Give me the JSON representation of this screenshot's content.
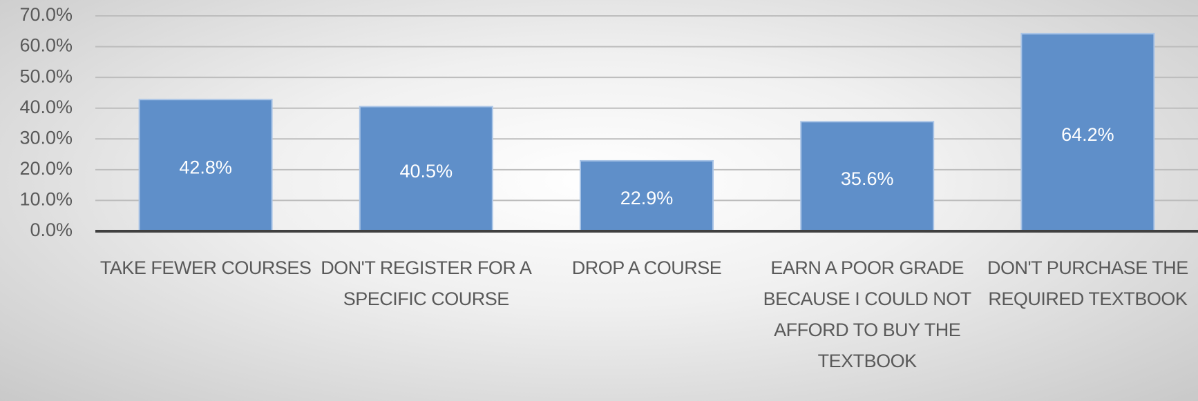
{
  "chart_data": {
    "type": "bar",
    "categories": [
      "TAKE FEWER COURSES",
      "DON'T REGISTER FOR A SPECIFIC COURSE",
      "DROP A COURSE",
      "EARN A POOR GRADE BECAUSE I COULD NOT AFFORD TO BUY THE TEXTBOOK",
      "DON'T PURCHASE THE REQUIRED TEXTBOOK"
    ],
    "values": [
      42.8,
      40.5,
      22.9,
      35.6,
      64.2
    ],
    "value_labels": [
      "42.8%",
      "40.5%",
      "22.9%",
      "35.6%",
      "64.2%"
    ],
    "color": "#5f8fc9",
    "ylim": [
      0,
      70
    ],
    "yticks": [
      {
        "value": 0,
        "label": "0.0%"
      },
      {
        "value": 10,
        "label": "10.0%"
      },
      {
        "value": 20,
        "label": "20.0%"
      },
      {
        "value": 30,
        "label": "30.0%"
      },
      {
        "value": 40,
        "label": "40.0%"
      },
      {
        "value": 50,
        "label": "50.0%"
      },
      {
        "value": 60,
        "label": "60.0%"
      },
      {
        "value": 70,
        "label": "70.0%"
      }
    ],
    "grid": true
  }
}
